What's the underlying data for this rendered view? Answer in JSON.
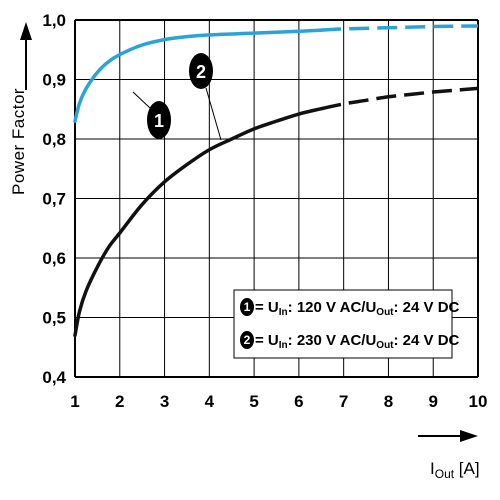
{
  "chart_data": {
    "type": "line",
    "title": "",
    "ylabel": "Power Factor",
    "xlabel": "I",
    "xlabel_subscript": "Out",
    "xlabel_unit": " [A]",
    "xlim": [
      1,
      10
    ],
    "ylim": [
      0.4,
      1.0
    ],
    "x_ticks": [
      1,
      2,
      3,
      4,
      5,
      6,
      7,
      8,
      9,
      10
    ],
    "x_tick_labels": [
      "1",
      "2",
      "3",
      "4",
      "5",
      "6",
      "7",
      "8",
      "9",
      "10"
    ],
    "y_ticks": [
      0.4,
      0.5,
      0.6,
      0.7,
      0.8,
      0.9,
      1.0
    ],
    "y_tick_labels": [
      "0,4",
      "0,5",
      "0,6",
      "0,7",
      "0,8",
      "0,9",
      "1,0"
    ],
    "grid": true,
    "colors": {
      "series1": "#2aa3d8",
      "series2": "#111111",
      "grid": "#000000"
    },
    "series": [
      {
        "marker": "1",
        "solid_until_x": 6.5,
        "x": [
          1.0,
          1.1,
          1.25,
          1.5,
          1.75,
          2.0,
          2.5,
          3.0,
          3.5,
          4.0,
          5.0,
          6.0,
          6.5,
          7.0,
          8.0,
          9.0,
          10.0
        ],
        "y": [
          0.83,
          0.86,
          0.885,
          0.912,
          0.93,
          0.942,
          0.958,
          0.967,
          0.972,
          0.975,
          0.978,
          0.981,
          0.983,
          0.985,
          0.987,
          0.989,
          0.99
        ]
      },
      {
        "marker": "2",
        "solid_until_x": 6.8,
        "x": [
          1.0,
          1.1,
          1.25,
          1.5,
          1.75,
          2.0,
          2.5,
          3.0,
          3.5,
          4.0,
          4.5,
          5.0,
          5.5,
          6.0,
          6.5,
          7.0,
          7.5,
          8.0,
          8.5,
          9.0,
          9.5,
          10.0
        ],
        "y": [
          0.47,
          0.51,
          0.545,
          0.585,
          0.618,
          0.642,
          0.69,
          0.728,
          0.757,
          0.782,
          0.8,
          0.817,
          0.83,
          0.842,
          0.851,
          0.859,
          0.865,
          0.871,
          0.875,
          0.879,
          0.882,
          0.885
        ]
      }
    ],
    "legend": [
      {
        "marker": "1",
        "prefix": "= U",
        "sub1": "In",
        "middle": ": 120 V AC/U",
        "sub2": "Out",
        "suffix": ": 24 V DC"
      },
      {
        "marker": "2",
        "prefix": "= U",
        "sub1": "In",
        "middle": ": 230 V AC/U",
        "sub2": "Out",
        "suffix": ": 24 V DC"
      }
    ]
  }
}
